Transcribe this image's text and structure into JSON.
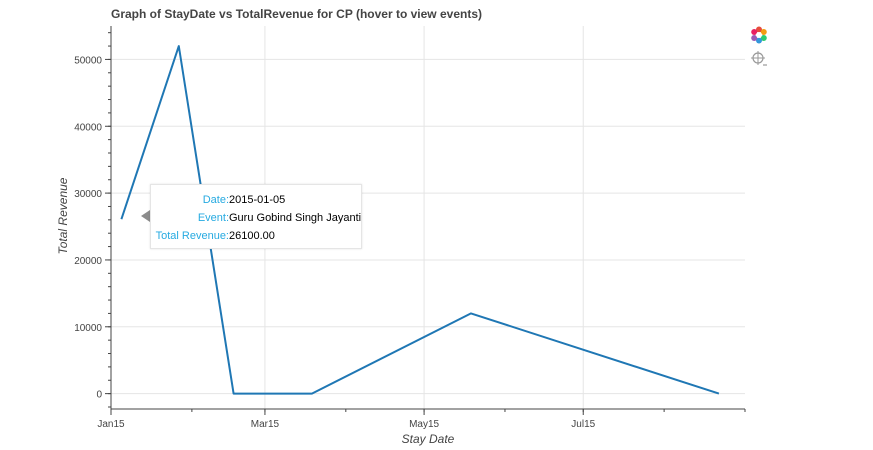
{
  "chart_data": {
    "type": "line",
    "title": "Graph of StayDate vs TotalRevenue for CP (hover to view events)",
    "xlabel": "Stay Date",
    "ylabel": "Total Revenue",
    "x_ticks": [
      "Jan15",
      "Mar15",
      "May15",
      "Jul15"
    ],
    "y_ticks": [
      "0",
      "10000",
      "20000",
      "30000",
      "40000",
      "50000"
    ],
    "series": [
      {
        "color": "#1f77b4",
        "points": [
          {
            "x": "2015-01-05",
            "y": 26100
          },
          {
            "x": "2015-01-27",
            "y": 52000
          },
          {
            "x": "2015-02-17",
            "y": 0
          },
          {
            "x": "2015-03-19",
            "y": 0
          },
          {
            "x": "2015-05-19",
            "y": 12000
          },
          {
            "x": "2015-08-22",
            "y": 0
          }
        ]
      }
    ],
    "xlim": [
      "2015-01-01",
      "2015-09-01"
    ],
    "ylim": [
      -2300,
      55000
    ],
    "grid": true,
    "tooltip": {
      "date_label": "Date:",
      "date_value": "2015-01-05",
      "event_label": "Event:",
      "event_value": "Guru Gobind Singh Jayanti",
      "revenue_label": "Total Revenue:",
      "revenue_value": "26100.00"
    }
  },
  "toolbar": {
    "logo_icon": "bokeh-logo-icon",
    "hover_icon": "crosshair-hover-icon"
  },
  "colors": {
    "line": "#1f77b4",
    "tooltip_key": "#26aae1",
    "grid": "#e5e5e5"
  }
}
